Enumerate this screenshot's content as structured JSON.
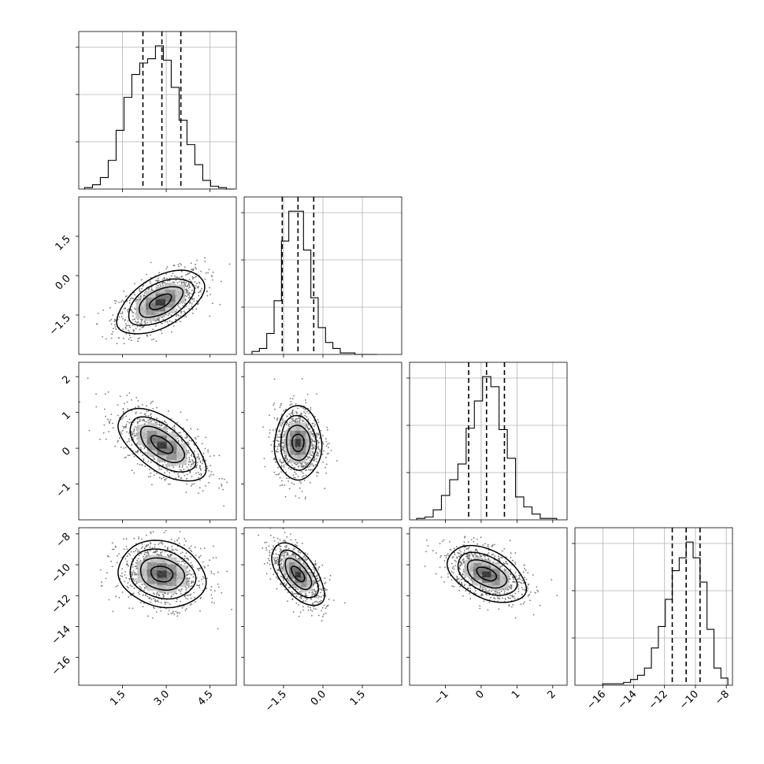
{
  "chart_data": {
    "type": "corner",
    "parameters": [
      {
        "index": 0,
        "range": [
          0.0,
          5.4
        ],
        "ticks": [
          1.5,
          3.0,
          4.5
        ],
        "tick_labels": [
          "1.5",
          "3.0",
          "4.5"
        ],
        "quantiles": [
          2.2,
          2.85,
          3.5
        ],
        "hist": {
          "edges": [
            0.2,
            0.47,
            0.74,
            1.01,
            1.28,
            1.55,
            1.82,
            2.09,
            2.36,
            2.63,
            2.9,
            3.17,
            3.44,
            3.71,
            3.98,
            4.25,
            4.52,
            4.79,
            5.06,
            5.33
          ],
          "counts": [
            1,
            3,
            8,
            20,
            41,
            64,
            80,
            88,
            91,
            100,
            90,
            71,
            48,
            31,
            17,
            6,
            2,
            1,
            0
          ]
        }
      },
      {
        "index": 1,
        "range": [
          -3.0,
          3.0
        ],
        "ticks": [
          -1.5,
          0.0,
          1.5
        ],
        "tick_labels": [
          "−1.5",
          "0.0",
          "1.5"
        ],
        "quantiles": [
          -1.55,
          -0.95,
          -0.35
        ],
        "hist": {
          "edges": [
            -2.7,
            -2.42,
            -2.14,
            -1.86,
            -1.58,
            -1.3,
            -1.02,
            -0.74,
            -0.46,
            -0.18,
            0.1,
            0.38,
            0.66,
            0.94,
            1.22,
            1.5,
            1.78,
            2.06
          ],
          "counts": [
            2,
            4,
            14,
            36,
            76,
            96,
            96,
            70,
            38,
            18,
            8,
            4,
            1,
            1,
            0,
            0,
            0
          ]
        }
      },
      {
        "index": 2,
        "range": [
          -2.0,
          2.4
        ],
        "ticks": [
          -1,
          0,
          1,
          2
        ],
        "tick_labels": [
          "−1",
          "0",
          "1",
          "2"
        ],
        "quantiles": [
          -0.35,
          0.15,
          0.65
        ],
        "hist": {
          "edges": [
            -1.8,
            -1.57,
            -1.34,
            -1.11,
            -0.88,
            -0.65,
            -0.42,
            -0.19,
            0.04,
            0.27,
            0.5,
            0.73,
            0.96,
            1.19,
            1.42,
            1.65,
            1.88,
            2.11
          ],
          "counts": [
            1,
            2,
            7,
            17,
            28,
            39,
            64,
            83,
            100,
            93,
            63,
            43,
            16,
            9,
            4,
            1,
            1
          ]
        }
      },
      {
        "index": 3,
        "range": [
          -17.8,
          -7.6
        ],
        "ticks": [
          -16,
          -14,
          -12,
          -10,
          -8
        ],
        "tick_labels": [
          "−16",
          "−14",
          "−12",
          "−10",
          "−8"
        ],
        "quantiles": [
          -11.5,
          -10.6,
          -9.7
        ],
        "hist": {
          "edges": [
            -16.0,
            -15.55,
            -15.1,
            -14.65,
            -14.2,
            -13.75,
            -13.3,
            -12.85,
            -12.4,
            -11.95,
            -11.5,
            -11.05,
            -10.6,
            -10.15,
            -9.7,
            -9.25,
            -8.8,
            -8.35,
            -7.9
          ],
          "counts": [
            1,
            1,
            1,
            2,
            4,
            7,
            12,
            26,
            41,
            60,
            80,
            89,
            100,
            89,
            72,
            39,
            12,
            5
          ]
        }
      }
    ],
    "pairs": [
      {
        "x": 1,
        "y": 0,
        "mean": [
          2.8,
          -1.0
        ],
        "sd": [
          0.75,
          0.6
        ],
        "rho": 0.55,
        "n": 950
      },
      {
        "x": 2,
        "y": 0,
        "mean": [
          2.85,
          0.1
        ],
        "sd": [
          0.75,
          0.5
        ],
        "rho": -0.6,
        "n": 950
      },
      {
        "x": 2,
        "y": 1,
        "mean": [
          -0.95,
          0.15
        ],
        "sd": [
          0.45,
          0.5
        ],
        "rho": 0.0,
        "n": 950
      },
      {
        "x": 3,
        "y": 0,
        "mean": [
          2.85,
          -10.6
        ],
        "sd": [
          0.75,
          1.05
        ],
        "rho": -0.15,
        "n": 950
      },
      {
        "x": 3,
        "y": 1,
        "mean": [
          -0.95,
          -10.6
        ],
        "sd": [
          0.5,
          1.0
        ],
        "rho": -0.6,
        "n": 950
      },
      {
        "x": 3,
        "y": 2,
        "mean": [
          0.15,
          -10.6
        ],
        "sd": [
          0.55,
          0.9
        ],
        "rho": -0.45,
        "n": 950
      }
    ],
    "contour_levels_sigma": [
      0.5,
      1.0,
      1.5,
      2.0
    ],
    "grid": true,
    "quantile_style": "dashed"
  }
}
